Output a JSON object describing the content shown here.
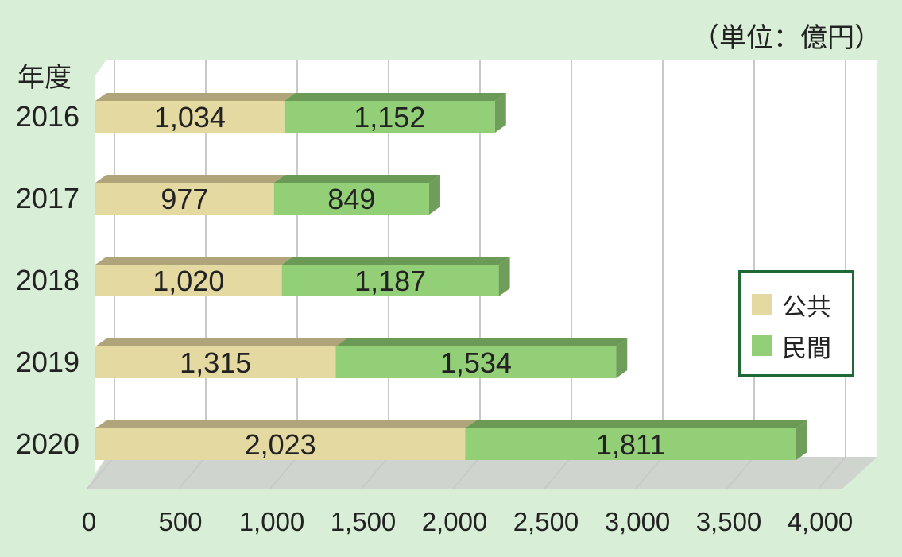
{
  "unit_label": "（単位：億円）",
  "year_header": "年度",
  "colors": {
    "public_front": "#e4d9a1",
    "public_top": "#b0a57a",
    "private_front": "#93cf76",
    "private_top": "#6b9a56",
    "private_side": "#6f9e5a",
    "plot_bg": "#ffffff",
    "floor": "#cfd4cf",
    "grid": "#c9c9c9",
    "legend_border": "#1f6a34"
  },
  "chart_data": {
    "type": "bar",
    "orientation": "horizontal",
    "stacked": true,
    "categories": [
      "2016",
      "2017",
      "2018",
      "2019",
      "2020"
    ],
    "series": [
      {
        "name": "公共",
        "values": [
          1034,
          977,
          1020,
          1315,
          2023
        ],
        "labels": [
          "1,034",
          "977",
          "1,020",
          "1,315",
          "2,023"
        ]
      },
      {
        "name": "民間",
        "values": [
          1152,
          849,
          1187,
          1534,
          1811
        ],
        "labels": [
          "1,152",
          "849",
          "1,187",
          "1,534",
          "1,811"
        ]
      }
    ],
    "xlim": [
      0,
      4000
    ],
    "xticks": [
      0,
      500,
      1000,
      1500,
      2000,
      2500,
      3000,
      3500,
      4000
    ],
    "xtick_labels": [
      "0",
      "500",
      "1,000",
      "1,500",
      "2,000",
      "2,500",
      "3,000",
      "3,500",
      "4,000"
    ],
    "grid": true,
    "legend_position": "right"
  }
}
